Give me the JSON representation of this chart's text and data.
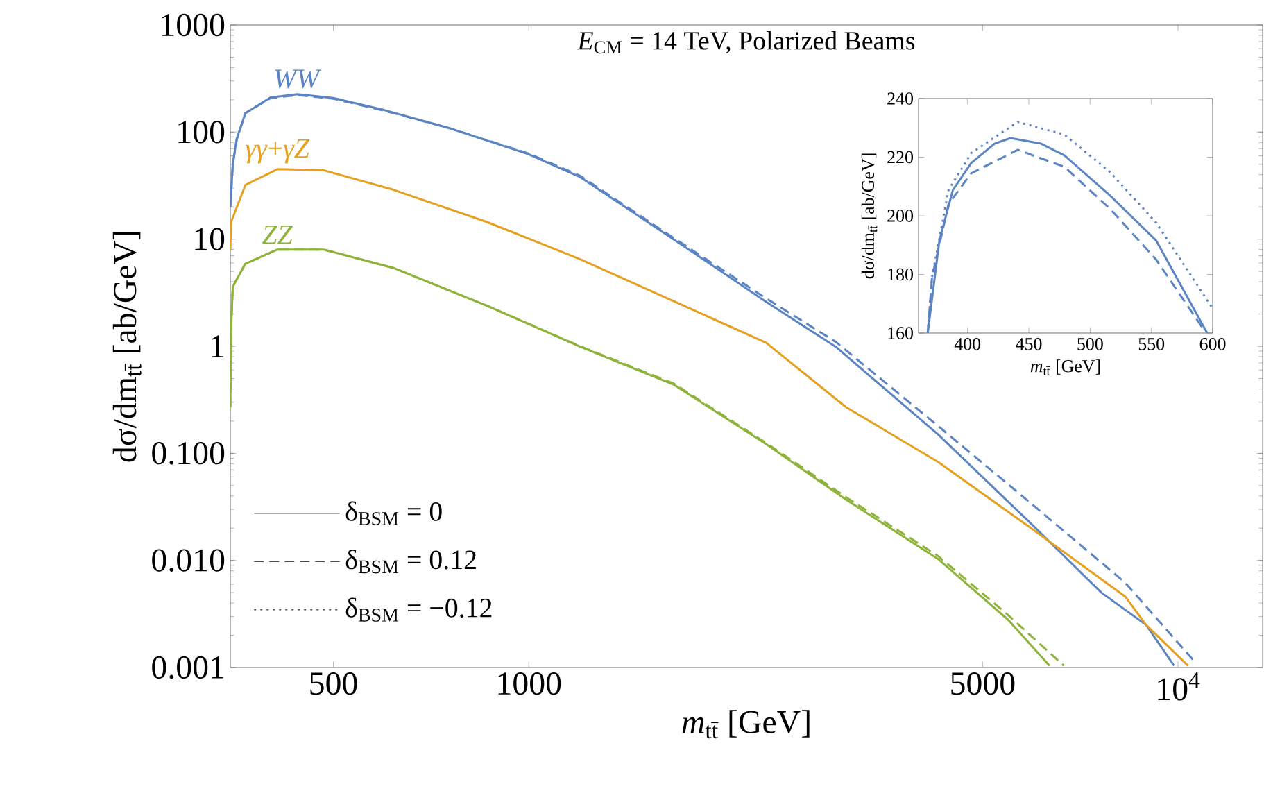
{
  "chart_data": [
    {
      "type": "line",
      "title": "*E*$_{CM}$ = 14 TeV, Polarized Beams",
      "xlabel": "*m*$_{tt̄}$ [GeV]",
      "ylabel": "dσ/dm$_{tt̄}$ [ab/GeV]",
      "log": "xy",
      "xlim": [
        347,
        13500
      ],
      "ylim": [
        0.001,
        1000
      ],
      "xticks": [
        500,
        1000,
        5000,
        {
          "value": 10000,
          "label": "10$^{4}$"
        }
      ],
      "yticks": [
        0.001,
        {
          "value": 0.01,
          "label": "0.010"
        },
        {
          "value": 0.1,
          "label": "0.100"
        },
        1,
        10,
        100,
        1000
      ],
      "annotations": [
        "δ$_{BSM}$ = 0",
        "δ$_{BSM}$ = 0.12",
        "δ$_{BSM}$ = −0.12"
      ],
      "series": [
        {
          "name": "*WW*",
          "color": "#5b84c4",
          "line_style": "solid",
          "x": [
            347,
            350,
            355,
            366,
            400,
            440,
            500,
            600,
            750,
            1000,
            1200,
            1670,
            2320,
            2970,
            4270,
            5940,
            7620,
            8930,
            9860
          ],
          "values": [
            20,
            50,
            87,
            150,
            210,
            226,
            208,
            160,
            110,
            62,
            38,
            10,
            2.6,
            0.99,
            0.15,
            0.022,
            0.005,
            0.0025,
            0.00104
          ]
        },
        {
          "color": "#5b84c4",
          "line_style": "dashed",
          "x": [
            347,
            350,
            355,
            366,
            400,
            440,
            500,
            600,
            750,
            1000,
            1200,
            1670,
            2320,
            2970,
            4270,
            5940,
            8290,
            10610
          ],
          "values": [
            20,
            50,
            85,
            150,
            207,
            222,
            205,
            158,
            110,
            63,
            39,
            10.3,
            2.8,
            1.1,
            0.18,
            0.034,
            0.0062,
            0.00113
          ]
        },
        {
          "name": "*γγ*+*γZ*",
          "color": "#e69f1f",
          "line_style": "solid",
          "x": [
            347,
            348,
            366,
            410,
            483,
            618,
            861,
            1200,
            1670,
            2320,
            3080,
            4270,
            5940,
            8290,
            8930,
            10360
          ],
          "values": [
            8,
            14.5,
            32,
            45,
            44,
            29,
            14.5,
            6.5,
            2.64,
            1.08,
            0.27,
            0.083,
            0.02,
            0.0046,
            0.0025,
            0.00104
          ]
        },
        {
          "name": "*ZZ*",
          "color": "#8db33a",
          "line_style": "solid",
          "x": [
            347,
            348,
            350,
            366,
            410,
            483,
            618,
            861,
            1200,
            1670,
            2320,
            3080,
            4270,
            5470,
            6340
          ],
          "values": [
            0.27,
            1.5,
            3.6,
            5.9,
            8,
            8,
            5.4,
            2.4,
            0.99,
            0.44,
            0.122,
            0.037,
            0.0103,
            0.0028,
            0.00104
          ]
        },
        {
          "color": "#8db33a",
          "line_style": "dashed",
          "x": [
            347,
            348,
            350,
            366,
            410,
            483,
            618,
            861,
            1200,
            1670,
            2320,
            3080,
            4270,
            5470,
            6670
          ],
          "values": [
            0.27,
            1.5,
            3.6,
            5.9,
            8,
            8,
            5.4,
            2.4,
            1.0,
            0.45,
            0.125,
            0.039,
            0.011,
            0.0031,
            0.00104
          ]
        }
      ]
    },
    {
      "type": "line",
      "xlabel": "*m*$_{tt̄}$ [GeV]",
      "ylabel": "dσ/dm$_{tt̄}$ [ab/GeV]",
      "xlim": [
        360,
        600
      ],
      "ylim": [
        160,
        240
      ],
      "xticks": [
        400,
        450,
        500,
        550,
        600
      ],
      "yticks": [
        160,
        180,
        200,
        220,
        240
      ],
      "series": [
        {
          "color": "#5b84c4",
          "line_style": "solid",
          "x": [
            367.5,
            377,
            388,
            403,
            422,
            435,
            460,
            479,
            516,
            554,
            595.5
          ],
          "values": [
            160,
            191.5,
            208.8,
            218,
            224.6,
            226.5,
            224.6,
            220.6,
            207,
            191.5,
            160
          ]
        },
        {
          "color": "#5b84c4",
          "line_style": "dotted",
          "x": [
            367.5,
            371,
            384.5,
            403,
            441,
            479,
            516,
            554,
            599
          ],
          "values": [
            160,
            179,
            208.8,
            221.4,
            232,
            227.7,
            215,
            197.6,
            169
          ]
        },
        {
          "color": "#5b84c4",
          "line_style": "dashed",
          "x": [
            367.5,
            371,
            384.5,
            403,
            441,
            479,
            516,
            554,
            592
          ],
          "values": [
            160,
            179,
            204,
            214.5,
            222.5,
            216.7,
            202.5,
            185,
            161.6
          ]
        }
      ]
    }
  ]
}
